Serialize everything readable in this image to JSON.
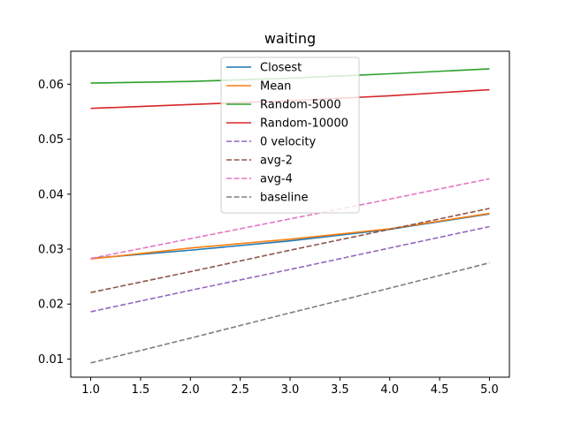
{
  "chart_data": {
    "type": "line",
    "title": "waiting",
    "xlabel": "",
    "ylabel": "",
    "xlim": [
      0.8,
      5.2
    ],
    "ylim": [
      0.0067,
      0.066
    ],
    "xticks": [
      1.0,
      1.5,
      2.0,
      2.5,
      3.0,
      3.5,
      4.0,
      4.5,
      5.0
    ],
    "xtick_labels": [
      "1.0",
      "1.5",
      "2.0",
      "2.5",
      "3.0",
      "3.5",
      "4.0",
      "4.5",
      "5.0"
    ],
    "yticks": [
      0.01,
      0.02,
      0.03,
      0.04,
      0.05,
      0.06
    ],
    "ytick_labels": [
      "0.01",
      "0.02",
      "0.03",
      "0.04",
      "0.05",
      "0.06"
    ],
    "grid": false,
    "legend_position": "top-center",
    "x": [
      1,
      2,
      3,
      4,
      5
    ],
    "series": [
      {
        "name": "Closest",
        "color": "#1f77b4",
        "dash": "solid",
        "values": [
          0.0283,
          0.0298,
          0.0315,
          0.0336,
          0.0364
        ]
      },
      {
        "name": "Mean",
        "color": "#ff7f0e",
        "dash": "solid",
        "values": [
          0.0282,
          0.0302,
          0.0318,
          0.0337,
          0.0365
        ]
      },
      {
        "name": "Random-5000",
        "color": "#2ca02c",
        "dash": "solid",
        "values": [
          0.0602,
          0.0605,
          0.0611,
          0.0619,
          0.0628
        ]
      },
      {
        "name": "Random-10000",
        "color": "#d62728",
        "dash": "solid",
        "values": [
          0.0556,
          0.0563,
          0.057,
          0.0579,
          0.059
        ]
      },
      {
        "name": "0 velocity",
        "color": "#9467bd",
        "dash": "dashed",
        "values": [
          0.0186,
          0.0225,
          0.0263,
          0.0302,
          0.0341
        ]
      },
      {
        "name": "avg-2",
        "color": "#8c564b",
        "dash": "dashed",
        "values": [
          0.0221,
          0.0259,
          0.0298,
          0.0336,
          0.0374
        ]
      },
      {
        "name": "avg-4",
        "color": "#e377c2",
        "dash": "dashed",
        "values": [
          0.0283,
          0.0319,
          0.0355,
          0.0391,
          0.0428
        ]
      },
      {
        "name": "baseline",
        "color": "#7f7f7f",
        "dash": "dashed",
        "values": [
          0.0093,
          0.0138,
          0.0184,
          0.0229,
          0.0275
        ]
      }
    ]
  }
}
